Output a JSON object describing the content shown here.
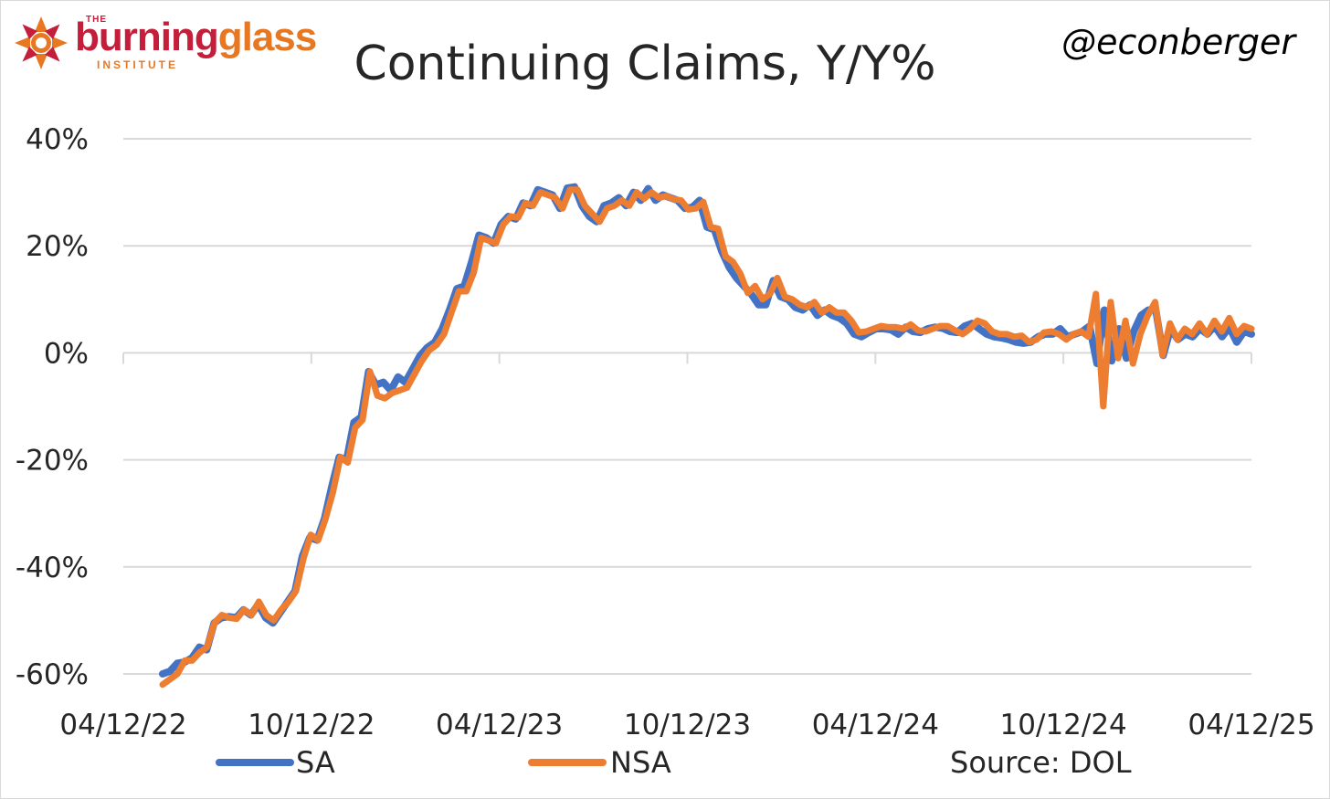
{
  "brand": {
    "the": "THE",
    "word1": "burning",
    "word2": "glass",
    "institute": "INSTITUTE"
  },
  "handle": "@econberger",
  "source": "Source: DOL",
  "colors": {
    "SA": "#4472c4",
    "NSA": "#ed7d31",
    "grid": "#d9d9d9",
    "text": "#262626",
    "brand_red": "#c41e3a",
    "brand_orange": "#e87722"
  },
  "chart_data": {
    "type": "line",
    "title": "Continuing Claims, Y/Y%",
    "ylim": [
      -60,
      40
    ],
    "y_ticks": [
      -60,
      -40,
      -20,
      0,
      20,
      40
    ],
    "y_tick_labels": [
      "-60%",
      "-40%",
      "-20%",
      "0%",
      "20%",
      "40%"
    ],
    "x_ticks": [
      "04/12/22",
      "10/12/22",
      "04/12/23",
      "10/12/23",
      "04/12/24",
      "10/12/24",
      "04/12/25"
    ],
    "grid": true,
    "legend_position": "bottom",
    "series": [
      {
        "name": "SA",
        "values": [
          -60,
          -59.5,
          -58,
          -57.8,
          -57,
          -55,
          -55.5,
          -50.5,
          -49.5,
          -49.3,
          -49.5,
          -48,
          -49,
          -47,
          -49.5,
          -50.5,
          -48.5,
          -46.5,
          -44.5,
          -38,
          -34.5,
          -35,
          -31,
          -25,
          -19.5,
          -20,
          -13,
          -12,
          -3.5,
          -6,
          -5.5,
          -7,
          -4.5,
          -5.5,
          -3,
          -0.5,
          1,
          2,
          4.5,
          8,
          12,
          12.5,
          17,
          22,
          21.5,
          20.5,
          24,
          25.5,
          25,
          28,
          27.5,
          30.5,
          30,
          29.5,
          27,
          30.8,
          31,
          27.5,
          25.5,
          24.5,
          27.5,
          28,
          29,
          27.5,
          30,
          28.5,
          30.7,
          28.5,
          29.5,
          29,
          28.5,
          27,
          27.2,
          28.5,
          23.5,
          23,
          19,
          16,
          14,
          12.5,
          11,
          9,
          9,
          13.5,
          10.5,
          10,
          8.5,
          8,
          9,
          7,
          8,
          7,
          6.5,
          5.5,
          3.5,
          3,
          3.8,
          4.5,
          4.5,
          4.3,
          3.5,
          4.8,
          4,
          3.8,
          4.5,
          4.8,
          4.6,
          4,
          3.8,
          5,
          5.5,
          4.5,
          3.5,
          3,
          2.8,
          2.5,
          2,
          1.8,
          2,
          3,
          3.5,
          3.5,
          4.5,
          3,
          3.5,
          4,
          5,
          -2,
          8,
          -1.5,
          4.5,
          -1,
          4,
          7,
          8,
          8,
          -0.5,
          4.5,
          2.5,
          3.5,
          3,
          4.5,
          3.5,
          5,
          3,
          4.8,
          2,
          4,
          3.5
        ],
        "color": "#4472c4"
      },
      {
        "name": "NSA",
        "values": [
          -62,
          -61,
          -60,
          -57.5,
          -57.5,
          -56,
          -55,
          -50.5,
          -49,
          -49.5,
          -49.7,
          -48,
          -49,
          -46.5,
          -49,
          -50,
          -48,
          -46.5,
          -44.5,
          -38.5,
          -34,
          -35,
          -31,
          -26,
          -19.5,
          -20.5,
          -14,
          -12.5,
          -3.5,
          -8,
          -8.5,
          -7.5,
          -7,
          -6.5,
          -4,
          -1.5,
          0.5,
          1.5,
          3.5,
          7.5,
          11.5,
          11.5,
          15,
          21.5,
          21,
          20.5,
          24,
          25.5,
          25.3,
          28,
          27.5,
          30,
          29.5,
          29,
          27,
          30.5,
          30.5,
          27.5,
          26,
          24.5,
          27,
          27.5,
          28.5,
          27.5,
          30,
          28.8,
          30,
          29,
          29.3,
          28.7,
          28.5,
          26.8,
          27,
          28.2,
          23.5,
          23.2,
          18,
          17,
          14.8,
          11.2,
          12.5,
          10,
          11,
          14,
          10.5,
          10,
          9,
          8.5,
          9.5,
          7.5,
          8.5,
          7.5,
          7.5,
          6,
          3.8,
          4,
          4.5,
          5,
          4.8,
          4.8,
          4.5,
          5.3,
          4.2,
          4,
          4.5,
          5,
          5,
          4.2,
          3.5,
          4.5,
          6,
          5.5,
          4,
          3.5,
          3.5,
          3,
          3.2,
          2,
          2.5,
          3.8,
          4,
          3.5,
          2.5,
          3.5,
          4,
          3,
          11,
          -10,
          9.5,
          -1,
          6,
          -2,
          3.5,
          7,
          9.5,
          -0.5,
          5.5,
          2.5,
          4.5,
          3.5,
          5.5,
          3.5,
          6,
          4,
          6.5,
          3.5,
          5,
          4.5
        ],
        "color": "#ed7d31"
      }
    ]
  }
}
